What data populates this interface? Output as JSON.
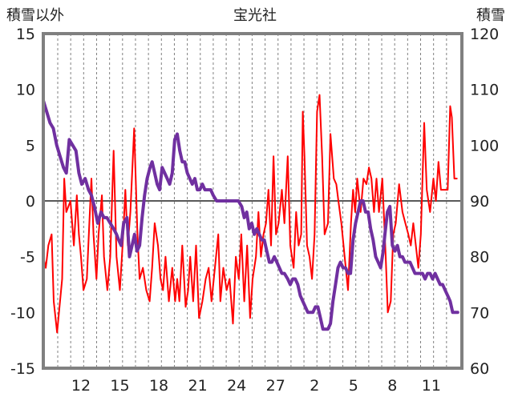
{
  "chart_data": {
    "type": "line",
    "title": "宝光社",
    "ylabel_left": "積雪以外",
    "ylabel_right": "積雪",
    "left_axis": {
      "min": -15,
      "max": 15,
      "ticks": [
        15,
        10,
        5,
        0,
        -5,
        -10,
        -15
      ]
    },
    "right_axis": {
      "min": 60,
      "max": 120,
      "ticks": [
        120,
        110,
        100,
        90,
        80,
        70,
        60
      ]
    },
    "x_range": [
      0,
      100
    ],
    "x_ticks": [
      {
        "pos": 9,
        "label": "12"
      },
      {
        "pos": 18.3,
        "label": "15"
      },
      {
        "pos": 27.6,
        "label": "18"
      },
      {
        "pos": 36.9,
        "label": "21"
      },
      {
        "pos": 46.2,
        "label": "24"
      },
      {
        "pos": 55.5,
        "label": "27"
      },
      {
        "pos": 64.8,
        "label": "2"
      },
      {
        "pos": 74.1,
        "label": "5"
      },
      {
        "pos": 83.4,
        "label": "8"
      },
      {
        "pos": 92.7,
        "label": "11"
      }
    ],
    "grid": "vertical-dashed",
    "colors": {
      "other": "#ff0000",
      "snow": "#7030a0",
      "frame": "#808080",
      "zero_line": "#595959"
    },
    "series": [
      {
        "axis": "left",
        "color": "#ff0000",
        "points": [
          [
            0,
            -5
          ],
          [
            0.6,
            -6
          ],
          [
            1.2,
            -4
          ],
          [
            2,
            -3
          ],
          [
            2.5,
            -9
          ],
          [
            3.3,
            -11.8
          ],
          [
            4.5,
            -7
          ],
          [
            5,
            2
          ],
          [
            5.5,
            -1
          ],
          [
            6.5,
            0
          ],
          [
            7.3,
            -4
          ],
          [
            8,
            0.5
          ],
          [
            8.5,
            -3
          ],
          [
            9,
            -5
          ],
          [
            9.6,
            -8
          ],
          [
            10.4,
            -7
          ],
          [
            11,
            -2
          ],
          [
            11.5,
            2
          ],
          [
            12,
            -3
          ],
          [
            12.7,
            -7
          ],
          [
            13.2,
            -3
          ],
          [
            14,
            0.5
          ],
          [
            14.5,
            -5
          ],
          [
            15.3,
            -8
          ],
          [
            16,
            -5
          ],
          [
            16.8,
            4.5
          ],
          [
            17.5,
            -5
          ],
          [
            18.3,
            -8
          ],
          [
            19.1,
            -3
          ],
          [
            19.6,
            1
          ],
          [
            20.2,
            -4
          ],
          [
            20.8,
            -1
          ],
          [
            21.7,
            6.5
          ],
          [
            22.5,
            -3
          ],
          [
            23,
            -7
          ],
          [
            23.8,
            -6
          ],
          [
            24.6,
            -8
          ],
          [
            25.4,
            -9
          ],
          [
            26,
            -6
          ],
          [
            26.6,
            -2
          ],
          [
            27.4,
            -4
          ],
          [
            28,
            -7
          ],
          [
            28.6,
            -8
          ],
          [
            29.2,
            -5
          ],
          [
            30,
            -9
          ],
          [
            30.8,
            -6
          ],
          [
            31.5,
            -9
          ],
          [
            32,
            -7
          ],
          [
            32.5,
            -9
          ],
          [
            33.2,
            -4
          ],
          [
            34,
            -9.5
          ],
          [
            34.6,
            -8
          ],
          [
            35.1,
            -5
          ],
          [
            35.8,
            -9
          ],
          [
            36.5,
            -4
          ],
          [
            37.2,
            -10.5
          ],
          [
            38,
            -9
          ],
          [
            38.8,
            -7
          ],
          [
            39.5,
            -6
          ],
          [
            40.2,
            -9
          ],
          [
            41,
            -6
          ],
          [
            41.8,
            -3
          ],
          [
            42.3,
            -9
          ],
          [
            43,
            -6
          ],
          [
            43.8,
            -8
          ],
          [
            44.5,
            -7
          ],
          [
            45.3,
            -11
          ],
          [
            46,
            -5
          ],
          [
            46.7,
            -7
          ],
          [
            47.3,
            -3
          ],
          [
            48,
            -9
          ],
          [
            48.7,
            -4
          ],
          [
            49.4,
            -10.5
          ],
          [
            50,
            -7
          ],
          [
            50.8,
            -5
          ],
          [
            51.4,
            -1
          ],
          [
            52,
            -5
          ],
          [
            52.6,
            -3
          ],
          [
            53.2,
            -2
          ],
          [
            53.8,
            1
          ],
          [
            54.4,
            -4
          ],
          [
            55,
            4
          ],
          [
            55.6,
            -3
          ],
          [
            56.2,
            -2
          ],
          [
            57,
            1
          ],
          [
            57.6,
            -2
          ],
          [
            58.4,
            4
          ],
          [
            59,
            -4
          ],
          [
            59.8,
            -6
          ],
          [
            60.4,
            -1
          ],
          [
            61,
            -4
          ],
          [
            61.6,
            -3
          ],
          [
            62,
            8
          ],
          [
            62.4,
            4
          ],
          [
            63,
            -4
          ],
          [
            63.6,
            -5
          ],
          [
            64.2,
            -7
          ],
          [
            64.8,
            -3
          ],
          [
            65.4,
            8
          ],
          [
            66,
            9.5
          ],
          [
            66.6,
            4
          ],
          [
            67.2,
            -3
          ],
          [
            68,
            -2
          ],
          [
            68.6,
            6
          ],
          [
            69.4,
            2
          ],
          [
            70,
            1.5
          ],
          [
            70.5,
            0
          ],
          [
            71.2,
            -2
          ],
          [
            72,
            -5
          ],
          [
            72.8,
            -8
          ],
          [
            73.5,
            -2
          ],
          [
            74,
            1
          ],
          [
            74.5,
            -1
          ],
          [
            75,
            2
          ],
          [
            75.8,
            -1
          ],
          [
            76.5,
            2
          ],
          [
            77.2,
            1.5
          ],
          [
            77.8,
            3
          ],
          [
            78.4,
            2
          ],
          [
            79,
            -1
          ],
          [
            79.6,
            2
          ],
          [
            80.2,
            -1
          ],
          [
            81,
            2
          ],
          [
            81.8,
            -5
          ],
          [
            82.3,
            -10
          ],
          [
            83,
            -9
          ],
          [
            83.6,
            -3
          ],
          [
            84.2,
            -2
          ],
          [
            85,
            1.5
          ],
          [
            85.8,
            -1
          ],
          [
            86.5,
            -2
          ],
          [
            87.2,
            -3
          ],
          [
            87.8,
            -4
          ],
          [
            88.4,
            -2
          ],
          [
            89,
            -4
          ],
          [
            89.6,
            -6
          ],
          [
            90.2,
            -3
          ],
          [
            91,
            7
          ],
          [
            91.6,
            1
          ],
          [
            92.4,
            -1
          ],
          [
            93.2,
            2
          ],
          [
            93.8,
            0
          ],
          [
            94.4,
            3.5
          ],
          [
            95,
            1
          ],
          [
            95.8,
            1
          ],
          [
            96.6,
            1
          ],
          [
            97.2,
            8.5
          ],
          [
            97.6,
            7.5
          ],
          [
            98.2,
            2
          ],
          [
            98.8,
            2
          ]
        ]
      },
      {
        "axis": "right",
        "color": "#7030a0",
        "points": [
          [
            0,
            108
          ],
          [
            0.8,
            106
          ],
          [
            1.6,
            104
          ],
          [
            2.4,
            103
          ],
          [
            3.2,
            100
          ],
          [
            4,
            98
          ],
          [
            4.8,
            96
          ],
          [
            5.5,
            95
          ],
          [
            6.2,
            101
          ],
          [
            7,
            100
          ],
          [
            7.8,
            99
          ],
          [
            8.5,
            95
          ],
          [
            9.2,
            93
          ],
          [
            10,
            94
          ],
          [
            10.8,
            92
          ],
          [
            11.5,
            91
          ],
          [
            12.2,
            89
          ],
          [
            13,
            86
          ],
          [
            13.8,
            88
          ],
          [
            14.5,
            87
          ],
          [
            15.2,
            87
          ],
          [
            16,
            86
          ],
          [
            16.8,
            85
          ],
          [
            17.5,
            84
          ],
          [
            18,
            83
          ],
          [
            18.6,
            82
          ],
          [
            19.2,
            86
          ],
          [
            20,
            87
          ],
          [
            20.6,
            80
          ],
          [
            21.2,
            82
          ],
          [
            21.8,
            84
          ],
          [
            22.4,
            81
          ],
          [
            23,
            82
          ],
          [
            23.6,
            87
          ],
          [
            24.2,
            91
          ],
          [
            24.8,
            94
          ],
          [
            25.5,
            96
          ],
          [
            26,
            97
          ],
          [
            26.6,
            95
          ],
          [
            27.2,
            93
          ],
          [
            27.8,
            92
          ],
          [
            28.4,
            96
          ],
          [
            29,
            95
          ],
          [
            29.6,
            94
          ],
          [
            30.2,
            93
          ],
          [
            30.8,
            95
          ],
          [
            31.4,
            101
          ],
          [
            32,
            102
          ],
          [
            32.6,
            99
          ],
          [
            33.2,
            97
          ],
          [
            33.8,
            97
          ],
          [
            34.4,
            95
          ],
          [
            35,
            94
          ],
          [
            35.6,
            93
          ],
          [
            36.2,
            94
          ],
          [
            36.8,
            92
          ],
          [
            37.4,
            92
          ],
          [
            38,
            93
          ],
          [
            38.6,
            92
          ],
          [
            39.2,
            92
          ],
          [
            40,
            92
          ],
          [
            40.6,
            91
          ],
          [
            41.4,
            90
          ],
          [
            42,
            90
          ],
          [
            42.6,
            90
          ],
          [
            43.4,
            90
          ],
          [
            44,
            90
          ],
          [
            45,
            90
          ],
          [
            45.8,
            90
          ],
          [
            46.6,
            90
          ],
          [
            47.4,
            89
          ],
          [
            48,
            87
          ],
          [
            48.6,
            88
          ],
          [
            49.2,
            85
          ],
          [
            49.8,
            86
          ],
          [
            50.4,
            84
          ],
          [
            51,
            85
          ],
          [
            51.6,
            84
          ],
          [
            52.2,
            83
          ],
          [
            52.8,
            83
          ],
          [
            53.4,
            81
          ],
          [
            54,
            79
          ],
          [
            54.6,
            79
          ],
          [
            55.2,
            80
          ],
          [
            55.8,
            79
          ],
          [
            56.4,
            78
          ],
          [
            57,
            77
          ],
          [
            57.6,
            77
          ],
          [
            58.4,
            76
          ],
          [
            59,
            75
          ],
          [
            59.6,
            76
          ],
          [
            60.2,
            76
          ],
          [
            60.8,
            75
          ],
          [
            61.4,
            73
          ],
          [
            62,
            72
          ],
          [
            62.6,
            71
          ],
          [
            63.2,
            70
          ],
          [
            63.8,
            70
          ],
          [
            64.4,
            70
          ],
          [
            65,
            71
          ],
          [
            65.6,
            71
          ],
          [
            66.2,
            69
          ],
          [
            66.8,
            67
          ],
          [
            67.4,
            67
          ],
          [
            68,
            67
          ],
          [
            68.6,
            68
          ],
          [
            69.2,
            72
          ],
          [
            69.8,
            75
          ],
          [
            70.4,
            78
          ],
          [
            71,
            79
          ],
          [
            71.6,
            78
          ],
          [
            72.2,
            78
          ],
          [
            72.8,
            77
          ],
          [
            73.4,
            77
          ],
          [
            74,
            83
          ],
          [
            74.6,
            86
          ],
          [
            75.2,
            88
          ],
          [
            75.8,
            90
          ],
          [
            76.4,
            90
          ],
          [
            77,
            88
          ],
          [
            77.6,
            88
          ],
          [
            78.2,
            85
          ],
          [
            78.8,
            83
          ],
          [
            79.4,
            80
          ],
          [
            80,
            79
          ],
          [
            80.6,
            78
          ],
          [
            81.2,
            81
          ],
          [
            81.6,
            84
          ],
          [
            82.2,
            88
          ],
          [
            82.8,
            89
          ],
          [
            83.4,
            82
          ],
          [
            84,
            81
          ],
          [
            84.6,
            82
          ],
          [
            85.2,
            80
          ],
          [
            85.8,
            80
          ],
          [
            86.4,
            79
          ],
          [
            87,
            79
          ],
          [
            87.6,
            79
          ],
          [
            88.2,
            78
          ],
          [
            88.8,
            77
          ],
          [
            89.4,
            77
          ],
          [
            90,
            77
          ],
          [
            90.6,
            77
          ],
          [
            91.2,
            76
          ],
          [
            91.8,
            77
          ],
          [
            92.4,
            77
          ],
          [
            93,
            76
          ],
          [
            93.6,
            77
          ],
          [
            94.2,
            76
          ],
          [
            94.8,
            75
          ],
          [
            95.4,
            75
          ],
          [
            96,
            74
          ],
          [
            96.6,
            73
          ],
          [
            97.2,
            72
          ],
          [
            97.8,
            70
          ],
          [
            98.4,
            70
          ],
          [
            99,
            70
          ]
        ]
      }
    ]
  }
}
